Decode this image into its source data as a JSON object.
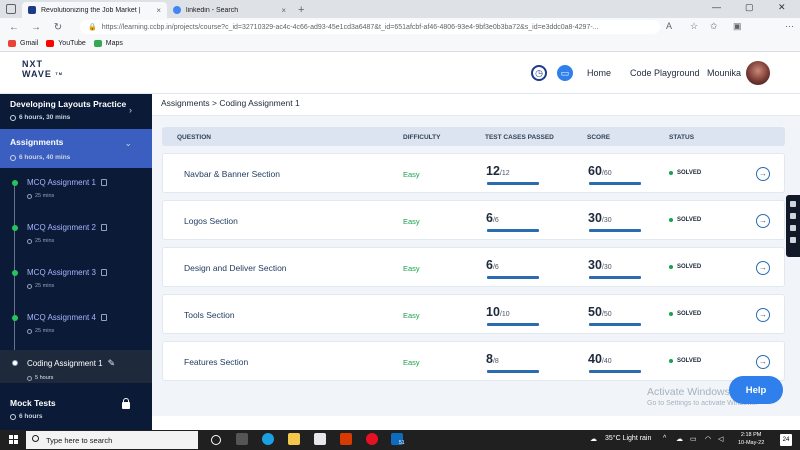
{
  "browser": {
    "tabs": [
      {
        "title": "Revolutionizing the Job Market |",
        "close": "×"
      },
      {
        "title": "linkedin - Search",
        "close": "×"
      }
    ],
    "new_tab": "+",
    "window_controls": {
      "minimize": "—",
      "maximize": "▢",
      "close": "✕"
    },
    "url": "https://learning.ccbp.in/projects/course?c_id=32710329-ac4c-4c66-ad93-45e1cd3a6487&t_id=651afcbf-af46-4806-93e4-9bf3e0b3ba72&s_id=e3ddc0a8-4297-...",
    "bookmarks": [
      {
        "label": "Gmail",
        "color": "#ea4335"
      },
      {
        "label": "YouTube",
        "color": "#ff0000"
      },
      {
        "label": "Maps",
        "color": "#34a853"
      }
    ]
  },
  "header": {
    "logo_line1": "NXT",
    "logo_line2": "WAVE",
    "logo_tm": "TM",
    "nav_home": "Home",
    "nav_code_playground": "Code Playground",
    "user_name": "Mounika"
  },
  "sidebar": {
    "sections": [
      {
        "title": "Developing Layouts Practice",
        "meta": "6 hours, 30 mins",
        "chevron": "›"
      },
      {
        "title": "Assignments",
        "meta": "6 hours, 40 mins",
        "chevron": "⌄"
      },
      {
        "title": "Mock Tests",
        "meta": "6 hours"
      }
    ],
    "items": [
      {
        "label": "MCQ Assignment 1",
        "meta": "25 mins"
      },
      {
        "label": "MCQ Assignment 2",
        "meta": "25 mins"
      },
      {
        "label": "MCQ Assignment 3",
        "meta": "25 mins"
      },
      {
        "label": "MCQ Assignment 4",
        "meta": "25 mins"
      },
      {
        "label": "Coding Assignment 1",
        "meta": "5 hours"
      }
    ]
  },
  "main": {
    "breadcrumb": "Assignments > Coding Assignment 1",
    "columns": [
      "QUESTION",
      "DIFFICULTY",
      "TEST CASES PASSED",
      "SCORE",
      "STATUS"
    ],
    "rows": [
      {
        "question": "Navbar & Banner Section",
        "difficulty": "Easy",
        "passed": "12",
        "passed_total": "/12",
        "score": "60",
        "score_total": "/60",
        "status": "SOLVED"
      },
      {
        "question": "Logos Section",
        "difficulty": "Easy",
        "passed": "6",
        "passed_total": "/6",
        "score": "30",
        "score_total": "/30",
        "status": "SOLVED"
      },
      {
        "question": "Design and Deliver Section",
        "difficulty": "Easy",
        "passed": "6",
        "passed_total": "/6",
        "score": "30",
        "score_total": "/30",
        "status": "SOLVED"
      },
      {
        "question": "Tools Section",
        "difficulty": "Easy",
        "passed": "10",
        "passed_total": "/10",
        "score": "50",
        "score_total": "/50",
        "status": "SOLVED"
      },
      {
        "question": "Features Section",
        "difficulty": "Easy",
        "passed": "8",
        "passed_total": "/8",
        "score": "40",
        "score_total": "/40",
        "status": "SOLVED"
      }
    ],
    "help_button": "Help",
    "watermark_line1": "Activate Windows",
    "watermark_line2": "Go to Settings to activate Windows."
  },
  "taskbar": {
    "search_placeholder": "Type here to search",
    "weather": "35°C  Light rain",
    "time": "2:18 PM",
    "date": "10-May-22",
    "notifications": "24",
    "edge_badge": "51"
  },
  "colors": {
    "sidebar_bg": "#0b1a37",
    "active_section": "#3b5fc0",
    "accent": "#2f80ed",
    "solved": "#16a34a"
  }
}
